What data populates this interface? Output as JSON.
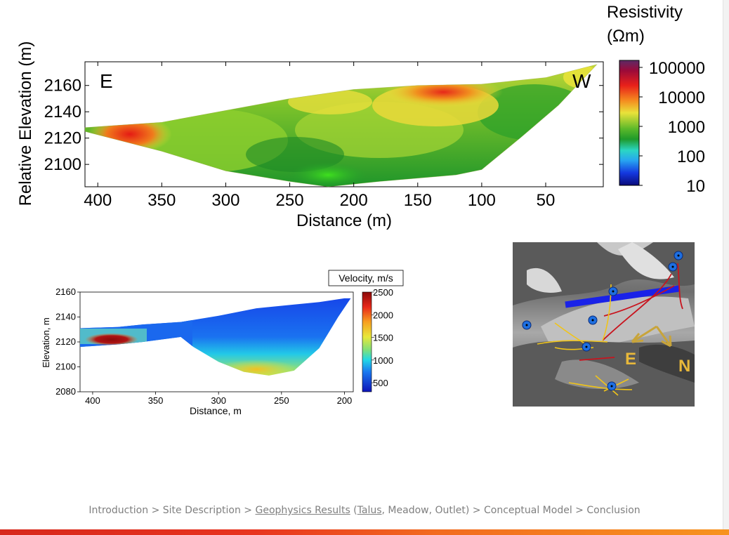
{
  "chart_data": [
    {
      "type": "heatmap",
      "title": "",
      "xlabel": "Distance (m)",
      "ylabel": "Relative Elevation (m)",
      "x_ticks": [
        400,
        350,
        300,
        250,
        200,
        150,
        100,
        50
      ],
      "y_ticks": [
        2160,
        2140,
        2120,
        2100
      ],
      "xlim": [
        410,
        5
      ],
      "ylim": [
        2083,
        2178
      ],
      "corner_labels": {
        "left": "E",
        "right": "W"
      },
      "colorbar": {
        "title_line1": "Resistivity",
        "title_line2": "(Ωm)",
        "scale": "log",
        "ticks": [
          "100000",
          "10000",
          "1000",
          "100",
          "10"
        ]
      },
      "surface_profile": [
        [
          410,
          2128
        ],
        [
          380,
          2130
        ],
        [
          350,
          2132
        ],
        [
          300,
          2141
        ],
        [
          250,
          2150
        ],
        [
          200,
          2157
        ],
        [
          150,
          2160
        ],
        [
          100,
          2161
        ],
        [
          50,
          2166
        ],
        [
          10,
          2176
        ]
      ],
      "base_profile": [
        [
          410,
          2125
        ],
        [
          350,
          2110
        ],
        [
          300,
          2095
        ],
        [
          250,
          2087
        ],
        [
          220,
          2083
        ],
        [
          180,
          2087
        ],
        [
          120,
          2092
        ],
        [
          100,
          2096
        ],
        [
          70,
          2120
        ],
        [
          40,
          2145
        ],
        [
          10,
          2176
        ]
      ],
      "features": [
        {
          "x": 375,
          "y": 2123,
          "level": "10000"
        },
        {
          "x": 130,
          "y": 2155,
          "level": "10000"
        },
        {
          "x": 220,
          "y": 2092,
          "level": "1000"
        }
      ]
    },
    {
      "type": "heatmap",
      "title": "",
      "xlabel": "Distance, m",
      "ylabel": "Elevation, m",
      "x_ticks": [
        400,
        350,
        300,
        250,
        200
      ],
      "y_ticks": [
        2160,
        2140,
        2120,
        2100,
        2080
      ],
      "xlim": [
        410,
        193
      ],
      "ylim": [
        2080,
        2160
      ],
      "colorbar": {
        "title": "Velocity, m/s",
        "ticks": [
          "2500",
          "2000",
          "1500",
          "1000",
          "500"
        ],
        "range": [
          300,
          2500
        ]
      },
      "surface_profile": [
        [
          410,
          2131
        ],
        [
          380,
          2132
        ],
        [
          360,
          2134
        ],
        [
          330,
          2136
        ],
        [
          300,
          2141
        ],
        [
          270,
          2147
        ],
        [
          240,
          2150
        ],
        [
          220,
          2152
        ],
        [
          200,
          2155
        ],
        [
          195,
          2155
        ]
      ],
      "base_profile": [
        [
          410,
          2116
        ],
        [
          380,
          2118
        ],
        [
          360,
          2120
        ],
        [
          330,
          2124
        ],
        [
          320,
          2116
        ],
        [
          300,
          2104
        ],
        [
          280,
          2096
        ],
        [
          260,
          2093
        ],
        [
          240,
          2097
        ],
        [
          220,
          2115
        ],
        [
          205,
          2140
        ],
        [
          195,
          2155
        ]
      ],
      "features": [
        {
          "x": 385,
          "y": 2122,
          "velocity": 2400
        },
        {
          "x": 270,
          "y": 2098,
          "velocity": 1600
        }
      ]
    }
  ],
  "site_photo": {
    "labels": {
      "east": "E",
      "north": "N"
    }
  },
  "nav": {
    "intro": "Introduction",
    "sep1": " > ",
    "site": "Site Description",
    "sep2": " > ",
    "geo": " Geophysics Results",
    "paren_open": " (",
    "talus": "Talus",
    "rest": ", Meadow, Outlet)",
    "sep3": " > ",
    "model": "Conceptual Model",
    "sep4": " > ",
    "conclusion": "Conclusion"
  },
  "colors": {
    "nav_text": "#7f7f7f",
    "profile_line": "#1a22e8",
    "photo_marker": "#1e6fe0",
    "fault_yellow": "#f0c419",
    "fault_red": "#c8141e",
    "arrow_gold": "#c8a43a"
  }
}
